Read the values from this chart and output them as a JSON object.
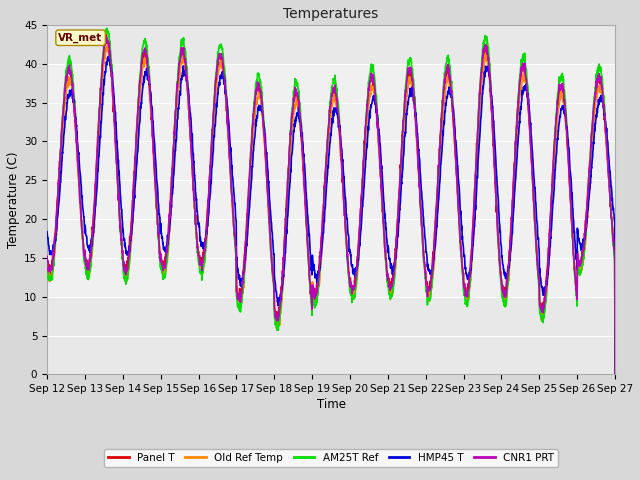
{
  "title": "Temperatures",
  "xlabel": "Time",
  "ylabel": "Temperature (C)",
  "ylim": [
    0,
    45
  ],
  "yticks": [
    0,
    5,
    10,
    15,
    20,
    25,
    30,
    35,
    40,
    45
  ],
  "date_start": 12,
  "date_end": 27,
  "series": {
    "Panel T": {
      "color": "#dd0000",
      "lw": 1.2
    },
    "Old Ref Temp": {
      "color": "#ff8800",
      "lw": 1.2
    },
    "AM25T Ref": {
      "color": "#00dd00",
      "lw": 1.2
    },
    "HMP45 T": {
      "color": "#0000dd",
      "lw": 1.2
    },
    "CNR1 PRT": {
      "color": "#bb00bb",
      "lw": 1.2
    }
  },
  "annotation_text": "VR_met",
  "bg_color": "#d8d8d8",
  "plot_bg_color": "#e8e8e8",
  "plot_inner_color": "#f0f0f0",
  "grid_color": "#ffffff",
  "figsize": [
    6.4,
    4.8
  ],
  "dpi": 100
}
